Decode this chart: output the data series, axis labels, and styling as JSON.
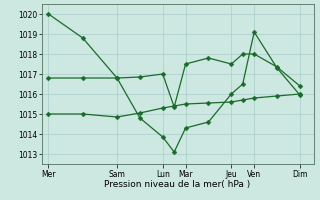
{
  "background_color": "#cce8e0",
  "grid_color": "#aacccc",
  "line_color": "#1a6b2a",
  "title": "Pression niveau de la mer( hPa )",
  "ylim": [
    1012.5,
    1020.5
  ],
  "yticks": [
    1013,
    1014,
    1015,
    1016,
    1017,
    1018,
    1019,
    1020
  ],
  "x_labels": [
    "Mer",
    "Sam",
    "Lun",
    "Mar",
    "Jeu",
    "Ven",
    "Dim"
  ],
  "x_tick_positions": [
    0,
    3,
    5,
    6,
    8,
    9,
    11
  ],
  "xlim": [
    -0.3,
    11.6
  ],
  "line1": {
    "x": [
      0,
      1.5,
      3,
      4,
      5,
      5.5,
      6,
      7,
      8,
      8.5,
      9,
      10,
      11
    ],
    "y": [
      1020.0,
      1018.8,
      1016.8,
      1014.8,
      1013.85,
      1013.1,
      1014.3,
      1014.6,
      1016.0,
      1016.5,
      1019.1,
      1017.3,
      1015.95
    ]
  },
  "line2": {
    "x": [
      0,
      1.5,
      3,
      4,
      5,
      5.5,
      6,
      7,
      8,
      8.5,
      9,
      10,
      11
    ],
    "y": [
      1016.8,
      1016.8,
      1016.8,
      1016.85,
      1017.0,
      1015.35,
      1017.5,
      1017.8,
      1017.5,
      1018.0,
      1018.0,
      1017.35,
      1016.4
    ]
  },
  "line3": {
    "x": [
      0,
      1.5,
      3,
      4,
      5,
      5.5,
      6,
      7,
      8,
      8.5,
      9,
      10,
      11
    ],
    "y": [
      1015.0,
      1015.0,
      1014.85,
      1015.05,
      1015.3,
      1015.4,
      1015.5,
      1015.55,
      1015.6,
      1015.7,
      1015.8,
      1015.9,
      1016.0
    ]
  },
  "markersize": 2.5,
  "linewidth": 0.9,
  "title_fontsize": 6.5,
  "tick_fontsize": 5.5
}
